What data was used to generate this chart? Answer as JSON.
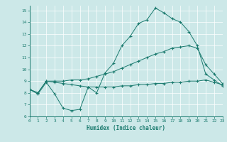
{
  "xlabel": "Humidex (Indice chaleur)",
  "xlim": [
    0,
    23
  ],
  "ylim": [
    6,
    15.4
  ],
  "xticks": [
    0,
    1,
    2,
    3,
    4,
    5,
    6,
    7,
    8,
    9,
    10,
    11,
    12,
    13,
    14,
    15,
    16,
    17,
    18,
    19,
    20,
    21,
    22,
    23
  ],
  "yticks": [
    6,
    7,
    8,
    9,
    10,
    11,
    12,
    13,
    14,
    15
  ],
  "bg_color": "#cce8e8",
  "line_color": "#1a7a6e",
  "series": [
    {
      "x": [
        0,
        1,
        2,
        3,
        4,
        5,
        6,
        7,
        8,
        9,
        10,
        11,
        12,
        13,
        14,
        15,
        16,
        17,
        18,
        19,
        20,
        21,
        22,
        23
      ],
      "y": [
        8.3,
        7.9,
        8.9,
        7.9,
        6.7,
        6.5,
        6.6,
        8.5,
        8.0,
        9.7,
        10.5,
        12.0,
        12.8,
        13.9,
        14.2,
        15.2,
        14.8,
        14.3,
        14.0,
        13.2,
        12.0,
        9.6,
        9.1,
        8.6
      ]
    },
    {
      "x": [
        0,
        1,
        2,
        3,
        4,
        5,
        6,
        7,
        8,
        9,
        10,
        11,
        12,
        13,
        14,
        15,
        16,
        17,
        18,
        19,
        20,
        21,
        22,
        23
      ],
      "y": [
        8.3,
        8.0,
        9.0,
        9.0,
        9.0,
        9.1,
        9.1,
        9.2,
        9.4,
        9.6,
        9.8,
        10.1,
        10.4,
        10.7,
        11.0,
        11.3,
        11.5,
        11.8,
        11.9,
        12.0,
        11.8,
        10.4,
        9.6,
        8.8
      ]
    },
    {
      "x": [
        0,
        1,
        2,
        3,
        4,
        5,
        6,
        7,
        8,
        9,
        10,
        11,
        12,
        13,
        14,
        15,
        16,
        17,
        18,
        19,
        20,
        21,
        22,
        23
      ],
      "y": [
        8.3,
        8.0,
        9.0,
        8.9,
        8.8,
        8.7,
        8.6,
        8.5,
        8.5,
        8.5,
        8.5,
        8.6,
        8.6,
        8.7,
        8.7,
        8.8,
        8.8,
        8.9,
        8.9,
        9.0,
        9.0,
        9.1,
        8.9,
        8.7
      ]
    }
  ]
}
